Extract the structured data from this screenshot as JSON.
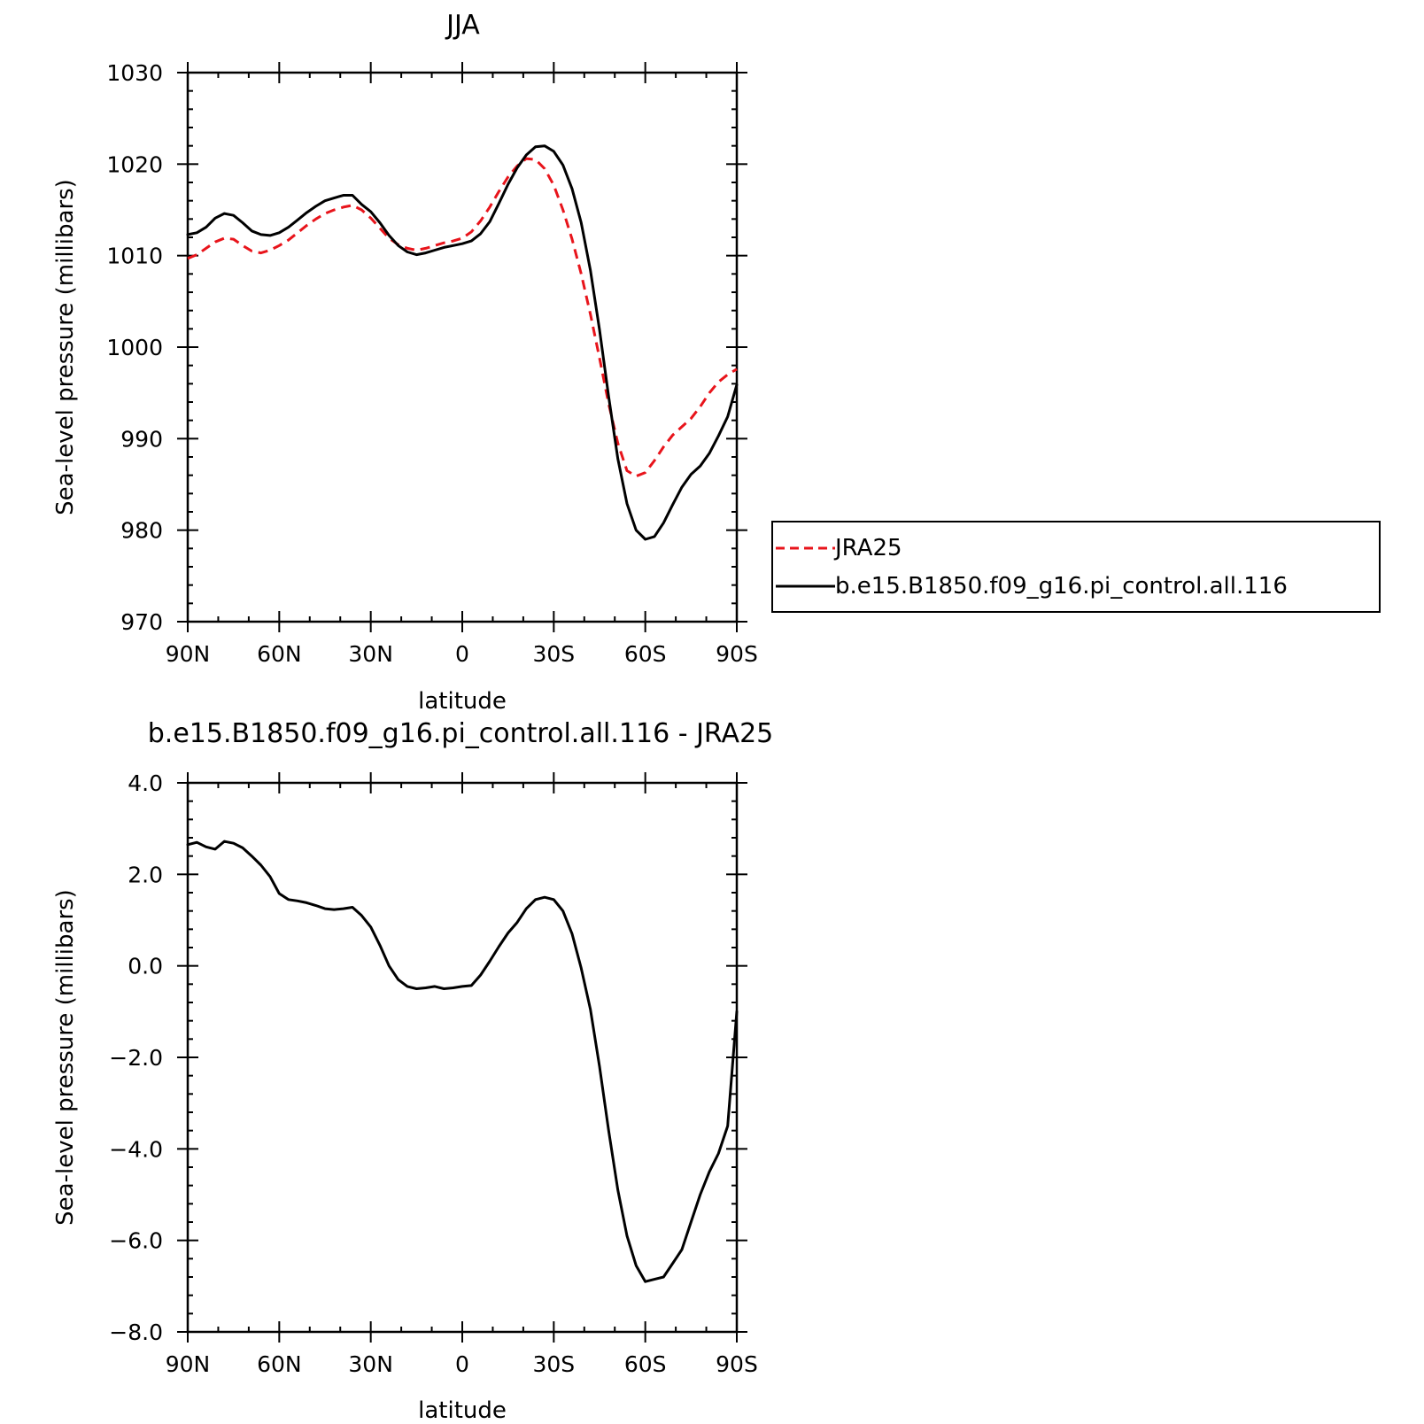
{
  "colors": {
    "reanalysis": "#e8141b",
    "model": "#000000"
  },
  "chart_data": [
    {
      "type": "line",
      "title": "JJA",
      "xlabel": "latitude",
      "ylabel": "Sea-level pressure (millibars)",
      "xlim": [
        90,
        -90
      ],
      "ylim": [
        970,
        1030
      ],
      "xticks": [
        90,
        60,
        30,
        0,
        -30,
        -60,
        -90
      ],
      "xtick_labels": [
        "90N",
        "60N",
        "30N",
        "0",
        "30S",
        "60S",
        "90S"
      ],
      "yticks": [
        970,
        980,
        990,
        1000,
        1010,
        1020,
        1030
      ],
      "ytick_labels": [
        "970",
        "980",
        "990",
        "1000",
        "1010",
        "1020",
        "1030"
      ],
      "grid": false,
      "legend": {
        "placement": "right",
        "entries": [
          "JRA25",
          "b.e15.B1850.f09_g16.pi_control.all.116"
        ]
      },
      "x": [
        90,
        87,
        84,
        81,
        78,
        75,
        72,
        69,
        66,
        63,
        60,
        57,
        54,
        51,
        48,
        45,
        42,
        39,
        36,
        33,
        30,
        27,
        24,
        21,
        18,
        15,
        12,
        9,
        6,
        3,
        0,
        -3,
        -6,
        -9,
        -12,
        -15,
        -18,
        -21,
        -24,
        -27,
        -30,
        -33,
        -36,
        -39,
        -42,
        -45,
        -48,
        -51,
        -54,
        -57,
        -60,
        -63,
        -66,
        -69,
        -72,
        -75,
        -78,
        -81,
        -84,
        -87,
        -90
      ],
      "series": [
        {
          "name": "JRA25",
          "style": "dashed",
          "color": "#e8141b",
          "values": [
            1009.7,
            1010.1,
            1010.8,
            1011.5,
            1011.9,
            1011.8,
            1011.1,
            1010.5,
            1010.3,
            1010.6,
            1011.1,
            1011.7,
            1012.5,
            1013.3,
            1014.0,
            1014.6,
            1015.0,
            1015.3,
            1015.5,
            1015.0,
            1014.1,
            1013.0,
            1011.9,
            1011.2,
            1010.8,
            1010.6,
            1010.8,
            1011.1,
            1011.4,
            1011.6,
            1011.9,
            1012.6,
            1013.8,
            1015.3,
            1017.0,
            1018.6,
            1019.8,
            1020.6,
            1020.5,
            1019.5,
            1017.7,
            1015.0,
            1011.8,
            1008.0,
            1003.6,
            998.8,
            993.8,
            989.5,
            986.5,
            985.9,
            986.3,
            987.6,
            989.1,
            990.4,
            991.3,
            992.2,
            993.5,
            995.0,
            996.2,
            997.0,
            997.6
          ]
        },
        {
          "name": "b.e15.B1850.f09_g16.pi_control.all.116",
          "style": "solid",
          "color": "#000000",
          "values": [
            1012.3,
            1012.5,
            1013.1,
            1014.1,
            1014.6,
            1014.4,
            1013.6,
            1012.7,
            1012.3,
            1012.2,
            1012.5,
            1013.1,
            1013.9,
            1014.7,
            1015.4,
            1016.0,
            1016.3,
            1016.6,
            1016.6,
            1015.6,
            1014.8,
            1013.6,
            1012.2,
            1011.1,
            1010.4,
            1010.1,
            1010.3,
            1010.6,
            1010.9,
            1011.1,
            1011.3,
            1011.6,
            1012.4,
            1013.7,
            1015.7,
            1017.8,
            1019.6,
            1021.0,
            1021.9,
            1022.0,
            1021.4,
            1019.9,
            1017.3,
            1013.6,
            1008.4,
            1001.9,
            994.6,
            987.8,
            982.9,
            980.0,
            979.0,
            979.3,
            980.8,
            982.8,
            984.7,
            986.1,
            987.0,
            988.4,
            990.3,
            992.4,
            995.9
          ]
        }
      ]
    },
    {
      "type": "line",
      "title": "b.e15.B1850.f09_g16.pi_control.all.116 - JRA25",
      "xlabel": "latitude",
      "ylabel": "Sea-level pressure (millibars)",
      "xlim": [
        90,
        -90
      ],
      "ylim": [
        -8,
        4
      ],
      "xticks": [
        90,
        60,
        30,
        0,
        -30,
        -60,
        -90
      ],
      "xtick_labels": [
        "90N",
        "60N",
        "30N",
        "0",
        "30S",
        "60S",
        "90S"
      ],
      "yticks": [
        -8,
        -6,
        -4,
        -2,
        0,
        2,
        4
      ],
      "ytick_labels": [
        "−8.0",
        "−6.0",
        "−4.0",
        "−2.0",
        "0.0",
        "2.0",
        "4.0"
      ],
      "grid": false,
      "x": [
        90,
        87,
        84,
        81,
        78,
        75,
        72,
        69,
        66,
        63,
        60,
        57,
        54,
        51,
        48,
        45,
        42,
        39,
        36,
        33,
        30,
        27,
        24,
        21,
        18,
        15,
        12,
        9,
        6,
        3,
        0,
        -3,
        -6,
        -9,
        -12,
        -15,
        -18,
        -21,
        -24,
        -27,
        -30,
        -33,
        -36,
        -39,
        -42,
        -45,
        -48,
        -51,
        -54,
        -57,
        -60,
        -63,
        -66,
        -69,
        -72,
        -75,
        -78,
        -81,
        -84,
        -87,
        -90
      ],
      "series": [
        {
          "style": "solid",
          "color": "#000000",
          "values": [
            2.65,
            2.7,
            2.6,
            2.55,
            2.72,
            2.68,
            2.58,
            2.4,
            2.2,
            1.95,
            1.58,
            1.45,
            1.42,
            1.38,
            1.32,
            1.25,
            1.23,
            1.25,
            1.28,
            1.1,
            0.85,
            0.45,
            0.0,
            -0.3,
            -0.45,
            -0.5,
            -0.48,
            -0.45,
            -0.5,
            -0.48,
            -0.45,
            -0.43,
            -0.2,
            0.1,
            0.42,
            0.72,
            0.95,
            1.25,
            1.45,
            1.5,
            1.45,
            1.2,
            0.7,
            -0.05,
            -0.95,
            -2.2,
            -3.6,
            -4.9,
            -5.9,
            -6.55,
            -6.9,
            -6.85,
            -6.8,
            -6.5,
            -6.2,
            -5.6,
            -5.0,
            -4.5,
            -4.1,
            -3.5,
            -1.0
          ]
        }
      ]
    }
  ]
}
